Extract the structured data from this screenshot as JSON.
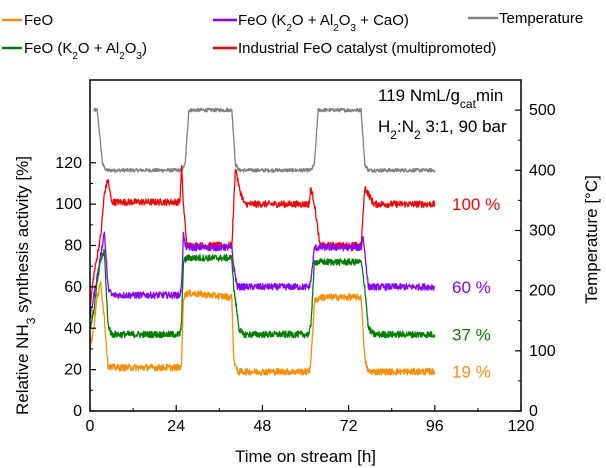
{
  "chart_data": {
    "type": "line",
    "xlabel": "Time on stream [h]",
    "ylabel_left": {
      "pre": "Relative NH",
      "sub": "3",
      "post": " synthesis activity [%]"
    },
    "ylabel_right": "Temperature [°C]",
    "xlim": [
      0,
      120
    ],
    "ylim_left": [
      0,
      160
    ],
    "ylim_right": [
      0,
      550
    ],
    "x_ticks": [
      0,
      24,
      48,
      72,
      96,
      120
    ],
    "y_ticks_left": [
      0,
      20,
      40,
      60,
      80,
      100,
      120
    ],
    "y_ticks_right": [
      0,
      100,
      200,
      300,
      400,
      500
    ],
    "grid": false,
    "legend_position": "top",
    "legend": [
      {
        "parts": [
          {
            "t": "FeO"
          }
        ],
        "color": "#ff8c00"
      },
      {
        "parts": [
          {
            "t": "FeO (K"
          },
          {
            "t": "2",
            "sub": true
          },
          {
            "t": "O + Al"
          },
          {
            "t": "2",
            "sub": true
          },
          {
            "t": "O"
          },
          {
            "t": "3",
            "sub": true
          },
          {
            "t": " + CaO)"
          }
        ],
        "color": "#8b00ff"
      },
      {
        "parts": [
          {
            "t": "Temperature"
          }
        ],
        "color": "#808080"
      },
      {
        "parts": [
          {
            "t": "FeO (K"
          },
          {
            "t": "2",
            "sub": true
          },
          {
            "t": "O + Al"
          },
          {
            "t": "2",
            "sub": true
          },
          {
            "t": "O"
          },
          {
            "t": "3",
            "sub": true
          },
          {
            "t": ")"
          }
        ],
        "color": "#008000"
      },
      {
        "parts": [
          {
            "t": "Industrial FeO catalyst (multipromoted)"
          }
        ],
        "color": "#ff0000"
      }
    ],
    "annotation_line1": {
      "pre": "119 NmL/g",
      "sub": "cat",
      "post": "min"
    },
    "annotation_line2": {
      "pre": "H",
      "sub": "2",
      "mid": ":N",
      "sub2": "2",
      "post": " 3:1, 90 bar"
    },
    "end_labels": [
      {
        "text": "100 %",
        "color": "#ff0000",
        "y": 100
      },
      {
        "text": "60 %",
        "color": "#8b00ff",
        "y": 60
      },
      {
        "text": "37 %",
        "color": "#008000",
        "y": 37
      },
      {
        "text": "19 %",
        "color": "#ff8c00",
        "y": 19
      }
    ],
    "series": [
      {
        "name": "Temperature",
        "axis": "right",
        "color": "#808080",
        "x": [
          1,
          2,
          3.5,
          4.5,
          25.5,
          26.5,
          27.5,
          39.5,
          40.5,
          41.5,
          61.5,
          62.5,
          63.5,
          75.5,
          76.5,
          77.5,
          96
        ],
        "y": [
          500,
          500,
          410,
          400,
          400,
          410,
          500,
          500,
          410,
          400,
          400,
          410,
          500,
          500,
          410,
          400,
          400
        ]
      },
      {
        "name": "Industrial FeO catalyst (multipromoted)",
        "axis": "left",
        "color": "#ff0000",
        "x": [
          0,
          1,
          2,
          3,
          4,
          5,
          6,
          25,
          25.5,
          26,
          27,
          39.5,
          40.5,
          41.5,
          43,
          61,
          61.5,
          62.5,
          64,
          75.5,
          76.5,
          77.5,
          79,
          96
        ],
        "y": [
          50,
          65,
          75,
          85,
          105,
          112,
          101,
          101,
          118,
          100,
          80,
          80,
          118,
          108,
          100,
          100,
          108,
          100,
          80,
          80,
          108,
          105,
          100,
          100
        ]
      },
      {
        "name": "FeO (K2O + Al2O3 + CaO)",
        "axis": "left",
        "color": "#8b00ff",
        "x": [
          0,
          1,
          2,
          3,
          4,
          5,
          6,
          25,
          25.5,
          26,
          26.5,
          27,
          39.5,
          40,
          41,
          42,
          61,
          61.5,
          62.5,
          64,
          75.5,
          76,
          77.5,
          79,
          96
        ],
        "y": [
          45,
          55,
          65,
          75,
          87,
          60,
          56,
          56,
          60,
          86,
          80,
          79,
          79,
          70,
          60,
          60,
          60,
          63,
          79,
          79,
          79,
          85,
          60,
          60,
          60
        ]
      },
      {
        "name": "FeO (K2O + Al2O3)",
        "axis": "left",
        "color": "#008000",
        "x": [
          0,
          1,
          2,
          3,
          4,
          5,
          6,
          25,
          25.5,
          26,
          27,
          39.5,
          40,
          41.5,
          42.5,
          61,
          61.5,
          62.5,
          64,
          75.5,
          76.5,
          77.5,
          79,
          96
        ],
        "y": [
          40,
          48,
          62,
          73,
          77,
          42,
          37,
          37,
          42,
          72,
          74,
          74,
          60,
          40,
          37,
          37,
          42,
          72,
          72,
          72,
          60,
          40,
          37,
          37
        ]
      },
      {
        "name": "FeO",
        "axis": "left",
        "color": "#ff8c00",
        "x": [
          0,
          1,
          2,
          3,
          4,
          5,
          6,
          25,
          25.5,
          26,
          27,
          39.5,
          40,
          41,
          61,
          61.5,
          62.5,
          64,
          75.5,
          76.5,
          77.5,
          96
        ],
        "y": [
          30,
          40,
          55,
          62,
          45,
          22,
          21,
          21,
          23,
          55,
          57,
          55,
          25,
          19,
          19,
          24,
          53,
          55,
          55,
          25,
          19,
          19
        ]
      }
    ]
  }
}
